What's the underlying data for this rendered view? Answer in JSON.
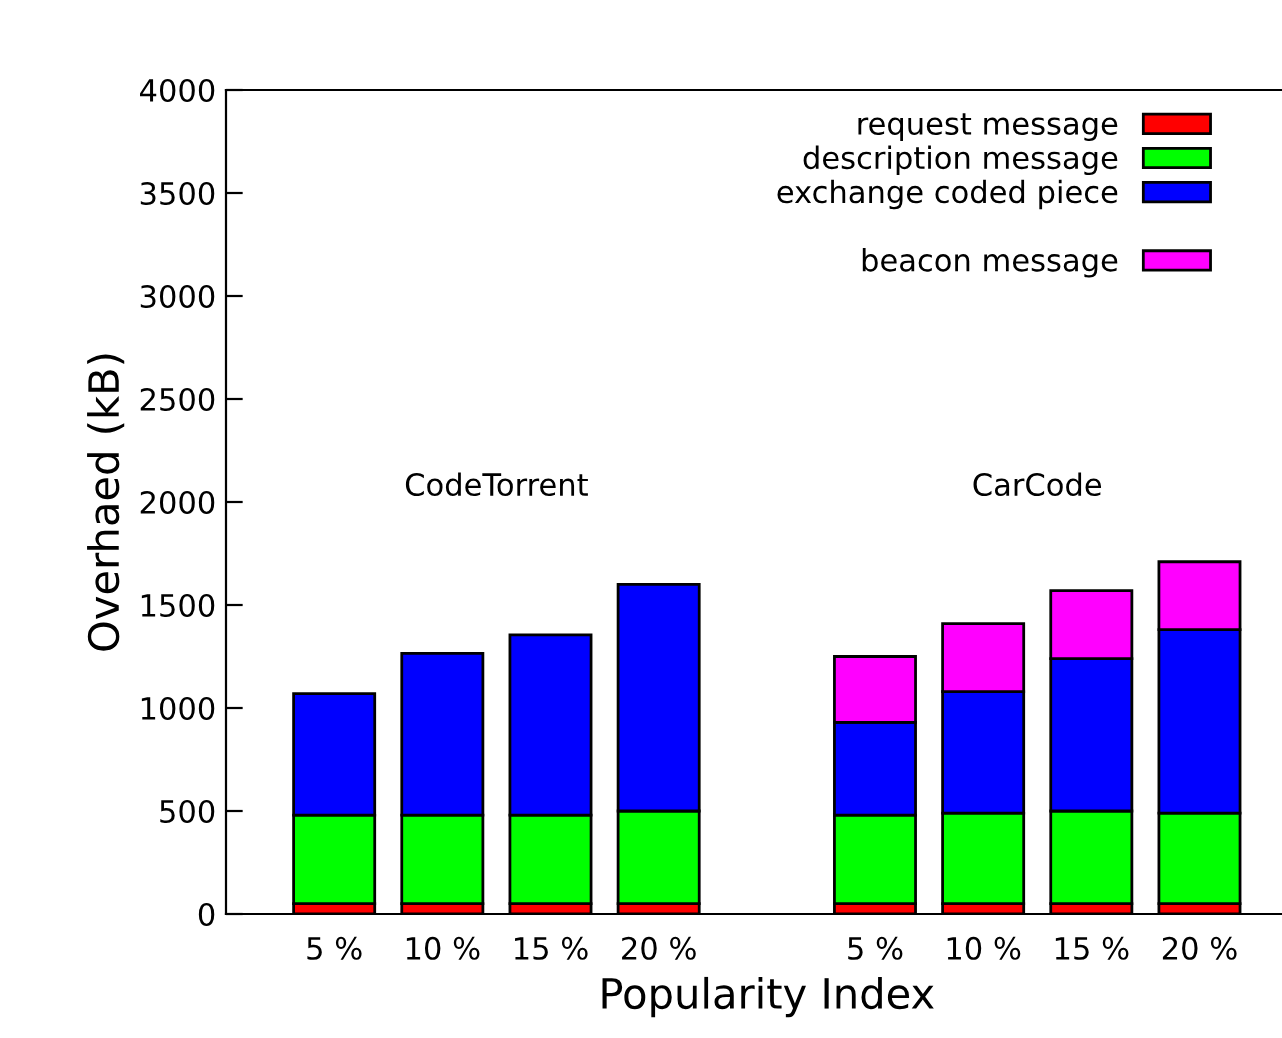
{
  "chart_data": {
    "type": "bar",
    "stacked": true,
    "xlabel": "Popularity Index",
    "ylabel": "Overhaed (kB)",
    "categories": [
      "5 %",
      "10 %",
      "15 %",
      "20 %",
      null,
      "5 %",
      "10 %",
      "15 %",
      "20 %"
    ],
    "series": [
      {
        "name": "request message",
        "color": "#ff0000",
        "values": [
          50,
          50,
          50,
          50,
          null,
          50,
          50,
          50,
          50
        ]
      },
      {
        "name": "description message",
        "color": "#00ff00",
        "values": [
          430,
          430,
          430,
          450,
          null,
          430,
          440,
          450,
          440
        ]
      },
      {
        "name": "exchange coded piece",
        "color": "#0000ff",
        "values": [
          590,
          785,
          875,
          1100,
          null,
          450,
          590,
          740,
          890
        ]
      },
      {
        "name": "beacon message",
        "color": "#ff00ff",
        "values": [
          null,
          null,
          null,
          null,
          null,
          320,
          330,
          330,
          330
        ]
      }
    ],
    "ylim": [
      0,
      4000
    ],
    "yticks": [
      0,
      500,
      1000,
      1500,
      2000,
      2500,
      3000,
      3500,
      4000
    ],
    "annotations": [
      "CodeTorrent",
      "CarCode"
    ],
    "legend": "top right",
    "grid": false
  }
}
